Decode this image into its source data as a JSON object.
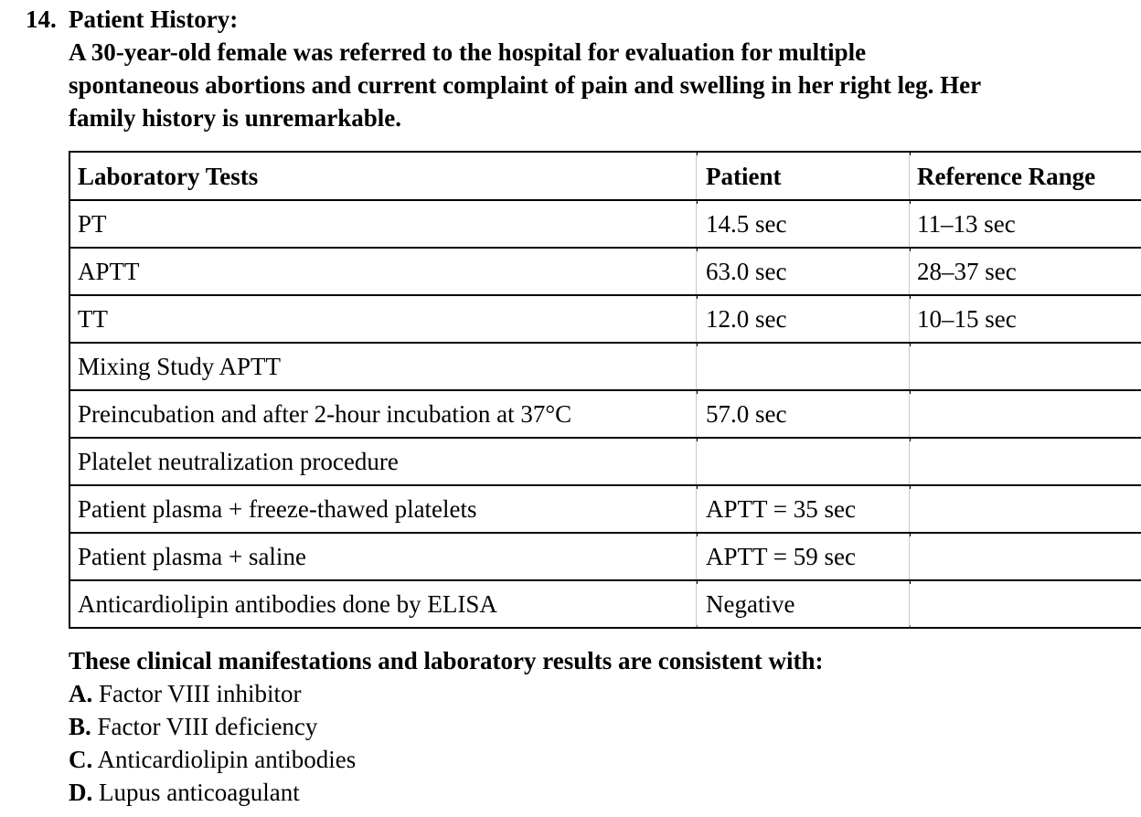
{
  "question": {
    "number": "14.",
    "title": "Patient History:",
    "history_lines": [
      "A 30-year-old female was referred to the hospital for evaluation for multiple",
      "spontaneous abortions and current complaint of pain and swelling in her right leg. Her",
      "family history is unremarkable."
    ],
    "stem": "These clinical manifestations and laboratory results are consistent with:",
    "options": [
      {
        "letter": "A.",
        "text": "Factor VIII inhibitor"
      },
      {
        "letter": "B.",
        "text": "Factor VIII deficiency"
      },
      {
        "letter": "C.",
        "text": "Anticardiolipin antibodies"
      },
      {
        "letter": "D.",
        "text": "Lupus anticoagulant"
      }
    ]
  },
  "table": {
    "headers": [
      "Laboratory Tests",
      "Patient",
      "Reference Range"
    ],
    "rows": [
      [
        "PT",
        "14.5 sec",
        "11–13 sec"
      ],
      [
        "APTT",
        "63.0 sec",
        "28–37 sec"
      ],
      [
        "TT",
        "12.0 sec",
        "10–15 sec"
      ],
      [
        "Mixing Study APTT",
        "",
        ""
      ],
      [
        "Preincubation and after 2-hour incubation at 37°C",
        "57.0 sec",
        ""
      ],
      [
        "Platelet neutralization procedure",
        "",
        ""
      ],
      [
        "Patient plasma + freeze-thawed platelets",
        "APTT = 35 sec",
        ""
      ],
      [
        "Patient plasma + saline",
        "APTT = 59 sec",
        ""
      ],
      [
        "Anticardiolipin antibodies done by ELISA",
        "Negative",
        ""
      ]
    ]
  },
  "colors": {
    "text": "#000000",
    "background": "#ffffff",
    "table_border": "#000000"
  }
}
